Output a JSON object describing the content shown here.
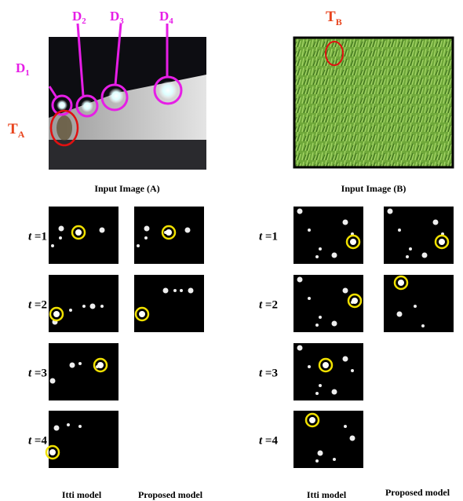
{
  "image_a": {
    "caption": "Input Image (A)",
    "labels": [
      {
        "letter": "D",
        "sub": "1"
      },
      {
        "letter": "D",
        "sub": "2"
      },
      {
        "letter": "D",
        "sub": "3"
      },
      {
        "letter": "D",
        "sub": "4"
      }
    ],
    "target": {
      "letter": "T",
      "sub": "A"
    }
  },
  "image_b": {
    "caption": "Input Image (B)",
    "target": {
      "letter": "T",
      "sub": "B"
    }
  },
  "rows": [
    {
      "var": "t",
      "text": " =1"
    },
    {
      "var": "t",
      "text": " =2"
    },
    {
      "var": "t",
      "text": " =3"
    },
    {
      "var": "t",
      "text": " =4"
    }
  ],
  "columns": [
    "Itti model",
    "Proposed model"
  ]
}
